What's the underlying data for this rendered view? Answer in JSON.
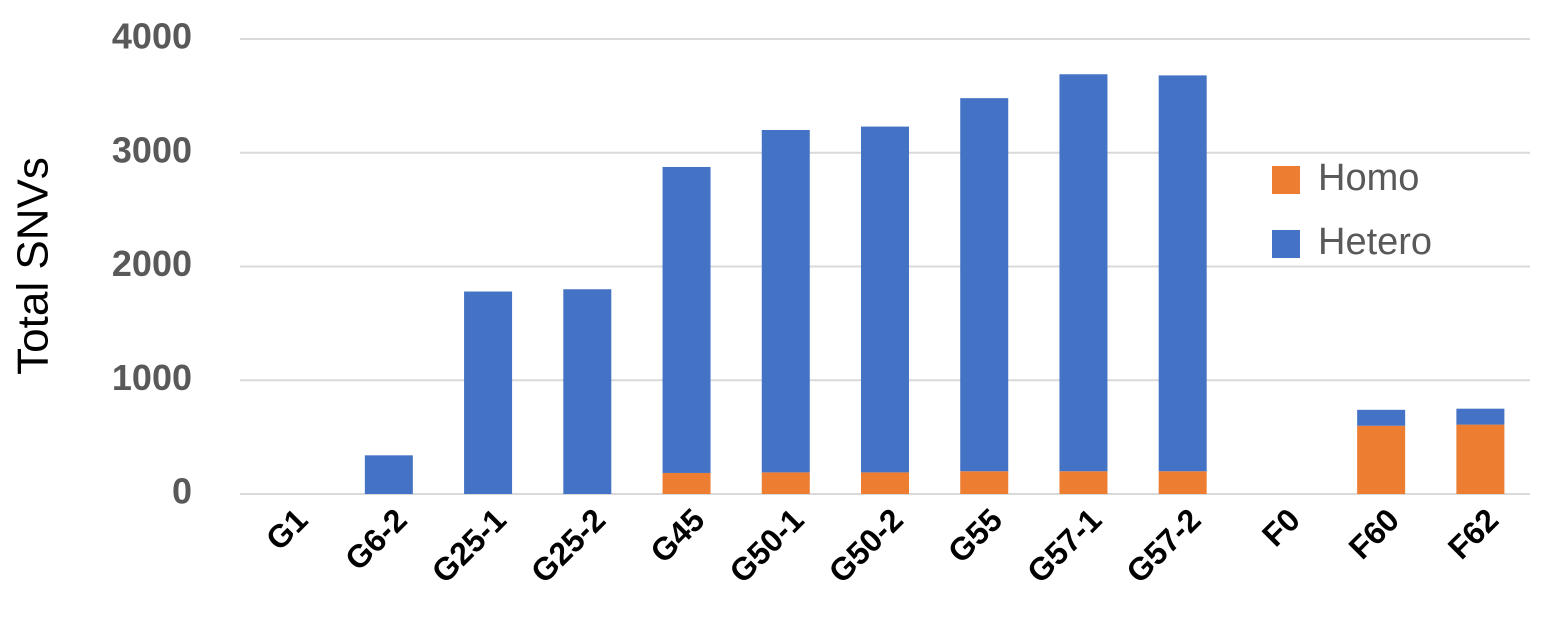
{
  "chart_data": {
    "type": "stacked-bar",
    "y_label": "Total SNVs",
    "categories": [
      "G1",
      "G6-2",
      "G25-1",
      "G25-2",
      "G45",
      "G50-1",
      "G50-2",
      "G55",
      "G57-1",
      "G57-2",
      "F0",
      "F60",
      "F62"
    ],
    "series": [
      {
        "name": "Homo",
        "color": "#ed7d31",
        "values": [
          0,
          0,
          0,
          0,
          185,
          190,
          190,
          200,
          200,
          200,
          0,
          600,
          610
        ]
      },
      {
        "name": "Hetero",
        "color": "#4472c4",
        "values": [
          0,
          340,
          1780,
          1800,
          2690,
          3010,
          3040,
          3280,
          3490,
          3480,
          0,
          140,
          140
        ]
      }
    ],
    "ylim": [
      0,
      4000
    ],
    "yticks": [
      0,
      1000,
      2000,
      3000,
      4000
    ],
    "grid": true,
    "legend": "right"
  }
}
